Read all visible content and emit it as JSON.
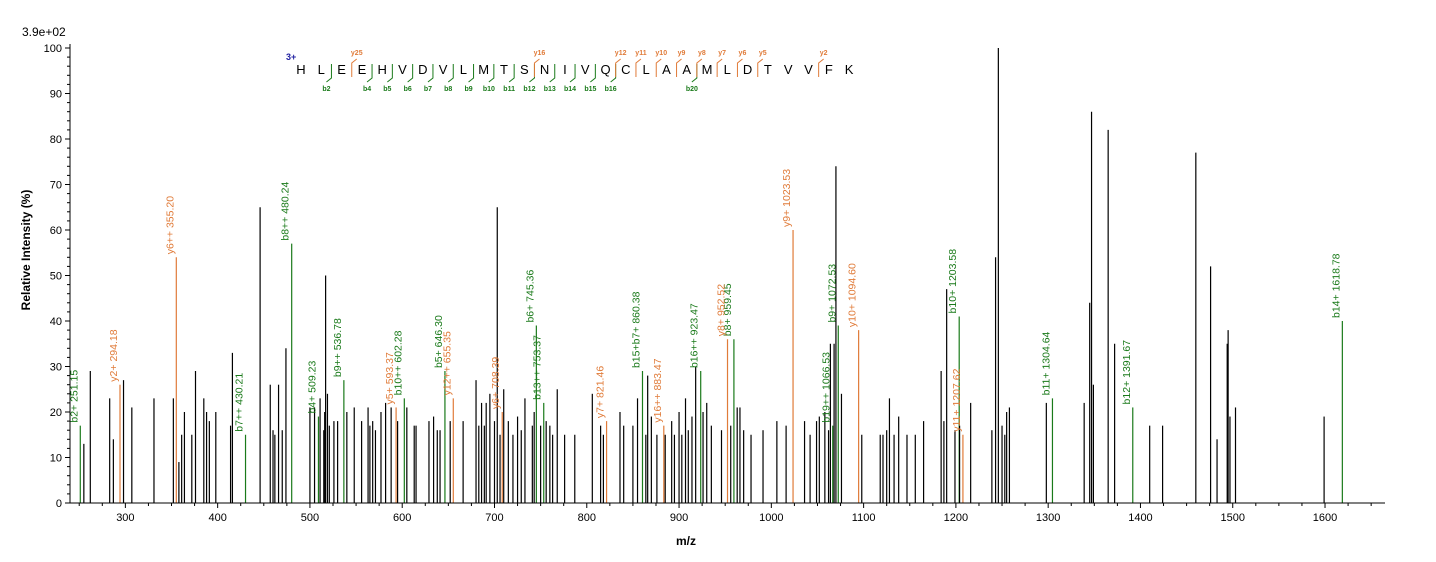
{
  "colors": {
    "unmatched": "#000000",
    "b_ion": "#1a7a1a",
    "y_ion": "#e07b39",
    "charge": "#1f1fa0",
    "axis": "#000000"
  },
  "chart_data": {
    "type": "bar",
    "max_intensity_label": "3.9e+02",
    "xlabel": "m/z",
    "ylabel": "Relative   Intensity (%)",
    "xlim": [
      240,
      1665
    ],
    "ylim": [
      0,
      100
    ],
    "x_ticks": [
      300,
      400,
      500,
      600,
      700,
      800,
      900,
      1000,
      1100,
      1200,
      1300,
      1400,
      1500,
      1600
    ],
    "y_ticks": [
      0,
      10,
      20,
      30,
      40,
      50,
      60,
      70,
      80,
      90,
      100
    ],
    "grid": false,
    "sequence": {
      "charge": "3+",
      "residues": [
        "H",
        "L",
        "E",
        "E",
        "H",
        "V",
        "D",
        "V",
        "L",
        "M",
        "T",
        "S",
        "N",
        "I",
        "V",
        "Q",
        "C",
        "L",
        "A",
        "A",
        "M",
        "L",
        "D",
        "T",
        "V",
        "V",
        "F",
        "K"
      ],
      "b_ions": [
        {
          "after": 2,
          "label": "b2"
        },
        {
          "after": 4,
          "label": "b4"
        },
        {
          "after": 5,
          "label": "b5"
        },
        {
          "after": 6,
          "label": "b6"
        },
        {
          "after": 7,
          "label": "b7"
        },
        {
          "after": 8,
          "label": "b8"
        },
        {
          "after": 9,
          "label": "b9"
        },
        {
          "after": 10,
          "label": "b10"
        },
        {
          "after": 11,
          "label": "b11"
        },
        {
          "after": 12,
          "label": "b12"
        },
        {
          "after": 13,
          "label": "b13"
        },
        {
          "after": 14,
          "label": "b14"
        },
        {
          "after": 15,
          "label": "b15"
        },
        {
          "after": 16,
          "label": "b16"
        },
        {
          "after": 20,
          "label": "b20"
        }
      ],
      "y_ions": [
        {
          "after": 3,
          "label": "y25"
        },
        {
          "after": 12,
          "label": "y16"
        },
        {
          "after": 16,
          "label": "y12"
        },
        {
          "after": 17,
          "label": "y11"
        },
        {
          "after": 18,
          "label": "y10"
        },
        {
          "after": 19,
          "label": "y9"
        },
        {
          "after": 20,
          "label": "y8"
        },
        {
          "after": 21,
          "label": "y7"
        },
        {
          "after": 22,
          "label": "y6"
        },
        {
          "after": 23,
          "label": "y5"
        },
        {
          "after": 26,
          "label": "y2"
        }
      ]
    },
    "series": [
      {
        "name": "b-ions",
        "peaks": [
          {
            "x": 251.15,
            "y": 17,
            "label": "b2+ 251.15"
          },
          {
            "x": 430.21,
            "y": 15,
            "label": "b7++ 430.21"
          },
          {
            "x": 480.24,
            "y": 57,
            "label": "b8++ 480.24"
          },
          {
            "x": 509.23,
            "y": 19,
            "label": "b4+ 509.23"
          },
          {
            "x": 536.78,
            "y": 27,
            "label": "b9++ 536.78"
          },
          {
            "x": 602.28,
            "y": 23,
            "label": "b10++ 602.28"
          },
          {
            "x": 646.3,
            "y": 29,
            "label": "b5+ 646.30"
          },
          {
            "x": 745.36,
            "y": 39,
            "label": "b6+ 745.36"
          },
          {
            "x": 753.37,
            "y": 22,
            "label": "b13++ 753.37"
          },
          {
            "x": 860.38,
            "y": 29,
            "label": "b15+b7+ 860.38"
          },
          {
            "x": 923.47,
            "y": 29,
            "label": "b16++ 923.47"
          },
          {
            "x": 959.45,
            "y": 36,
            "label": "b8+ 959.45"
          },
          {
            "x": 1066.53,
            "y": 17,
            "label": "b19++ 1066.53"
          },
          {
            "x": 1072.53,
            "y": 39,
            "label": "b9+ 1072.53"
          },
          {
            "x": 1203.58,
            "y": 41,
            "label": "b10+ 1203.58"
          },
          {
            "x": 1304.64,
            "y": 23,
            "label": "b11+ 1304.64"
          },
          {
            "x": 1391.67,
            "y": 21,
            "label": "b12+ 1391.67"
          },
          {
            "x": 1618.78,
            "y": 40,
            "label": "b14+ 1618.78"
          }
        ]
      },
      {
        "name": "y-ions",
        "peaks": [
          {
            "x": 294.18,
            "y": 26,
            "label": "y2+ 294.18"
          },
          {
            "x": 355.2,
            "y": 54,
            "label": "y6++ 355.20"
          },
          {
            "x": 593.37,
            "y": 21,
            "label": "y5+ 593.37"
          },
          {
            "x": 655.35,
            "y": 23,
            "label": "y12++ 655.35"
          },
          {
            "x": 708.39,
            "y": 20,
            "label": "y6+ 708.39"
          },
          {
            "x": 821.46,
            "y": 18,
            "label": "y7+ 821.46"
          },
          {
            "x": 883.47,
            "y": 17,
            "label": "y16++ 883.47"
          },
          {
            "x": 952.52,
            "y": 36,
            "label": "y8+ 952.52"
          },
          {
            "x": 1023.53,
            "y": 60,
            "label": "y9+ 1023.53"
          },
          {
            "x": 1094.6,
            "y": 38,
            "label": "y10+ 1094.60"
          },
          {
            "x": 1207.62,
            "y": 15,
            "label": "y11+ 1207.62"
          }
        ]
      },
      {
        "name": "unmatched",
        "peaks": [
          {
            "x": 255,
            "y": 13
          },
          {
            "x": 262,
            "y": 29
          },
          {
            "x": 283,
            "y": 23
          },
          {
            "x": 287,
            "y": 14
          },
          {
            "x": 298,
            "y": 27
          },
          {
            "x": 307,
            "y": 21
          },
          {
            "x": 331,
            "y": 23
          },
          {
            "x": 352,
            "y": 23
          },
          {
            "x": 358,
            "y": 9
          },
          {
            "x": 361,
            "y": 15
          },
          {
            "x": 364,
            "y": 20
          },
          {
            "x": 372,
            "y": 15
          },
          {
            "x": 376,
            "y": 29
          },
          {
            "x": 385,
            "y": 23
          },
          {
            "x": 388,
            "y": 20
          },
          {
            "x": 391,
            "y": 18
          },
          {
            "x": 398,
            "y": 20
          },
          {
            "x": 414,
            "y": 17
          },
          {
            "x": 416,
            "y": 33
          },
          {
            "x": 446,
            "y": 65
          },
          {
            "x": 457,
            "y": 26
          },
          {
            "x": 460,
            "y": 16
          },
          {
            "x": 462,
            "y": 15
          },
          {
            "x": 466,
            "y": 26
          },
          {
            "x": 470,
            "y": 16
          },
          {
            "x": 474,
            "y": 34
          },
          {
            "x": 500,
            "y": 21
          },
          {
            "x": 505,
            "y": 21
          },
          {
            "x": 511,
            "y": 23
          },
          {
            "x": 515,
            "y": 16
          },
          {
            "x": 516,
            "y": 20
          },
          {
            "x": 517,
            "y": 50
          },
          {
            "x": 519,
            "y": 24
          },
          {
            "x": 521,
            "y": 17
          },
          {
            "x": 526,
            "y": 18
          },
          {
            "x": 530,
            "y": 18
          },
          {
            "x": 540,
            "y": 20
          },
          {
            "x": 548,
            "y": 21
          },
          {
            "x": 556,
            "y": 18
          },
          {
            "x": 563,
            "y": 21
          },
          {
            "x": 565,
            "y": 17
          },
          {
            "x": 568,
            "y": 18
          },
          {
            "x": 571,
            "y": 16
          },
          {
            "x": 577,
            "y": 20
          },
          {
            "x": 582,
            "y": 22
          },
          {
            "x": 588,
            "y": 21
          },
          {
            "x": 595,
            "y": 18
          },
          {
            "x": 605,
            "y": 21
          },
          {
            "x": 613,
            "y": 17
          },
          {
            "x": 615,
            "y": 17
          },
          {
            "x": 629,
            "y": 18
          },
          {
            "x": 634,
            "y": 19
          },
          {
            "x": 638,
            "y": 16
          },
          {
            "x": 641,
            "y": 16
          },
          {
            "x": 652,
            "y": 18
          },
          {
            "x": 666,
            "y": 18
          },
          {
            "x": 680,
            "y": 27
          },
          {
            "x": 683,
            "y": 17
          },
          {
            "x": 686,
            "y": 22
          },
          {
            "x": 689,
            "y": 17
          },
          {
            "x": 691,
            "y": 22
          },
          {
            "x": 695,
            "y": 24
          },
          {
            "x": 700,
            "y": 18
          },
          {
            "x": 703,
            "y": 65
          },
          {
            "x": 706,
            "y": 15
          },
          {
            "x": 710,
            "y": 25
          },
          {
            "x": 715,
            "y": 18
          },
          {
            "x": 720,
            "y": 15
          },
          {
            "x": 725,
            "y": 19
          },
          {
            "x": 729,
            "y": 16
          },
          {
            "x": 733,
            "y": 23
          },
          {
            "x": 741,
            "y": 17
          },
          {
            "x": 743,
            "y": 20
          },
          {
            "x": 750,
            "y": 17
          },
          {
            "x": 756,
            "y": 18
          },
          {
            "x": 760,
            "y": 17
          },
          {
            "x": 763,
            "y": 15
          },
          {
            "x": 768,
            "y": 25
          },
          {
            "x": 776,
            "y": 15
          },
          {
            "x": 787,
            "y": 15
          },
          {
            "x": 806,
            "y": 24
          },
          {
            "x": 815,
            "y": 17
          },
          {
            "x": 818,
            "y": 15
          },
          {
            "x": 836,
            "y": 20
          },
          {
            "x": 840,
            "y": 17
          },
          {
            "x": 850,
            "y": 17
          },
          {
            "x": 855,
            "y": 23
          },
          {
            "x": 864,
            "y": 15
          },
          {
            "x": 866,
            "y": 28
          },
          {
            "x": 870,
            "y": 19
          },
          {
            "x": 876,
            "y": 15
          },
          {
            "x": 885,
            "y": 15
          },
          {
            "x": 892,
            "y": 18
          },
          {
            "x": 895,
            "y": 15
          },
          {
            "x": 900,
            "y": 20
          },
          {
            "x": 903,
            "y": 15
          },
          {
            "x": 907,
            "y": 23
          },
          {
            "x": 910,
            "y": 16
          },
          {
            "x": 914,
            "y": 19
          },
          {
            "x": 918,
            "y": 30
          },
          {
            "x": 926,
            "y": 20
          },
          {
            "x": 930,
            "y": 22
          },
          {
            "x": 935,
            "y": 17
          },
          {
            "x": 946,
            "y": 16
          },
          {
            "x": 956,
            "y": 17
          },
          {
            "x": 963,
            "y": 21
          },
          {
            "x": 966,
            "y": 21
          },
          {
            "x": 970,
            "y": 16
          },
          {
            "x": 978,
            "y": 15
          },
          {
            "x": 991,
            "y": 16
          },
          {
            "x": 1006,
            "y": 18
          },
          {
            "x": 1016,
            "y": 17
          },
          {
            "x": 1036,
            "y": 18
          },
          {
            "x": 1042,
            "y": 15
          },
          {
            "x": 1049,
            "y": 18
          },
          {
            "x": 1052,
            "y": 19
          },
          {
            "x": 1058,
            "y": 20
          },
          {
            "x": 1062,
            "y": 16
          },
          {
            "x": 1064,
            "y": 35
          },
          {
            "x": 1068,
            "y": 35
          },
          {
            "x": 1070,
            "y": 74
          },
          {
            "x": 1076,
            "y": 24
          },
          {
            "x": 1098,
            "y": 15
          },
          {
            "x": 1118,
            "y": 15
          },
          {
            "x": 1121,
            "y": 15
          },
          {
            "x": 1125,
            "y": 16
          },
          {
            "x": 1128,
            "y": 23
          },
          {
            "x": 1133,
            "y": 15
          },
          {
            "x": 1138,
            "y": 19
          },
          {
            "x": 1147,
            "y": 15
          },
          {
            "x": 1156,
            "y": 15
          },
          {
            "x": 1165,
            "y": 18
          },
          {
            "x": 1184,
            "y": 29
          },
          {
            "x": 1187,
            "y": 18
          },
          {
            "x": 1190,
            "y": 47
          },
          {
            "x": 1199,
            "y": 16
          },
          {
            "x": 1204,
            "y": 17
          },
          {
            "x": 1216,
            "y": 22
          },
          {
            "x": 1239,
            "y": 16
          },
          {
            "x": 1243,
            "y": 54
          },
          {
            "x": 1246,
            "y": 100
          },
          {
            "x": 1250,
            "y": 17
          },
          {
            "x": 1253,
            "y": 15
          },
          {
            "x": 1255,
            "y": 20
          },
          {
            "x": 1258,
            "y": 21
          },
          {
            "x": 1298,
            "y": 22
          },
          {
            "x": 1339,
            "y": 22
          },
          {
            "x": 1345,
            "y": 44
          },
          {
            "x": 1347,
            "y": 86
          },
          {
            "x": 1349,
            "y": 26
          },
          {
            "x": 1365,
            "y": 82
          },
          {
            "x": 1372,
            "y": 35
          },
          {
            "x": 1410,
            "y": 17
          },
          {
            "x": 1424,
            "y": 17
          },
          {
            "x": 1460,
            "y": 77
          },
          {
            "x": 1476,
            "y": 52
          },
          {
            "x": 1483,
            "y": 14
          },
          {
            "x": 1494,
            "y": 35
          },
          {
            "x": 1495,
            "y": 38
          },
          {
            "x": 1497,
            "y": 19
          },
          {
            "x": 1503,
            "y": 21
          },
          {
            "x": 1599,
            "y": 19
          }
        ]
      }
    ]
  }
}
